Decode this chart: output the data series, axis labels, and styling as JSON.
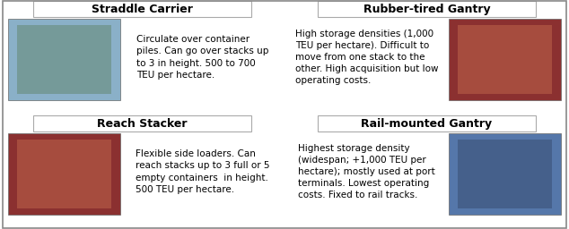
{
  "cells": [
    {
      "title": "Straddle Carrier",
      "text": "Circulate over container\npiles. Can go over stacks up\nto 3 in height. 500 to 700\nTEU per hectare.",
      "img_side": "left"
    },
    {
      "title": "Rubber-tired Gantry",
      "text": "High storage densities (1,000\nTEU per hectare). Difficult to\nmove from one stack to the\nother. High acquisition but low\noperating costs.",
      "img_side": "right"
    },
    {
      "title": "Reach Stacker",
      "text": "Flexible side loaders. Can\nreach stacks up to 3 full or 5\nempty containers  in height.\n500 TEU per hectare.",
      "img_side": "left"
    },
    {
      "title": "Rail-mounted Gantry",
      "text": "Highest storage density\n(widespan; +1,000 TEU per\nhectare); mostly used at port\nterminals. Lowest operating\ncosts. Fixed to rail tracks.",
      "img_side": "right"
    }
  ],
  "cell_bg": "#ffffff",
  "border_color": "#aaaaaa",
  "title_fontsize": 9,
  "text_fontsize": 7.5,
  "fig_bg": "#ffffff",
  "outer_border": "#888888",
  "img_colors_main": [
    "#8ab0c8",
    "#8b3030",
    "#8b3030",
    "#5577aa"
  ],
  "img_colors_accent": [
    "#5d8060",
    "#c87050",
    "#c87050",
    "#334466"
  ]
}
